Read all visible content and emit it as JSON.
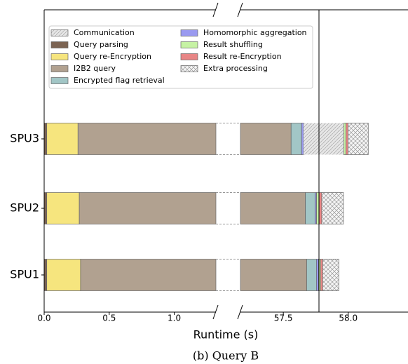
{
  "chart_data": {
    "type": "broken-barh",
    "categories": [
      "SPU3",
      "SPU2",
      "SPU1"
    ],
    "series": [
      {
        "name": "Communication",
        "color": "#e6e6e6",
        "values": [
          0.31,
          0,
          0
        ]
      },
      {
        "name": "Query parsing",
        "color": "#7b6352",
        "values": [
          0.02,
          0.02,
          0.02
        ]
      },
      {
        "name": "Query re-Encryption",
        "color": "#f6e57e",
        "values": [
          0.24,
          0.25,
          0.26
        ]
      },
      {
        "name": "I2B2 query",
        "color": "#b1a190",
        "values": [
          57.3,
          57.4,
          57.4
        ]
      },
      {
        "name": "Encrypted flag retrieval",
        "color": "#a2c6c6",
        "values": [
          0.08,
          0.075,
          0.075
        ]
      },
      {
        "name": "Homomorphic aggregation",
        "color": "#9a9af0",
        "values": [
          0.016,
          0.011,
          0.016
        ]
      },
      {
        "name": "Result shuffling",
        "color": "#c6f2a4",
        "values": [
          0.016,
          0.02,
          0.016
        ]
      },
      {
        "name": "Result re-Encryption",
        "color": "#e88585",
        "values": [
          0.016,
          0.02,
          0.016
        ]
      },
      {
        "name": "Extra processing",
        "color": "#f4f4f4",
        "values": [
          0.156,
          0.167,
          0.124
        ]
      }
    ],
    "xlim": [
      0,
      1.32
    ],
    "x2lim": [
      57.17,
      58.46
    ],
    "xticks": [
      {
        "value": 0,
        "label": "0.0"
      },
      {
        "value": 0.5,
        "label": "0.5"
      },
      {
        "value": 1,
        "label": "1.0"
      }
    ],
    "x2ticks": [
      {
        "value": 57.5,
        "label": "57.5"
      },
      {
        "value": 58,
        "label": "58.0"
      }
    ],
    "xlabel": "Runtime (s)",
    "caption": "(b) Query B",
    "legend": "upper left"
  }
}
